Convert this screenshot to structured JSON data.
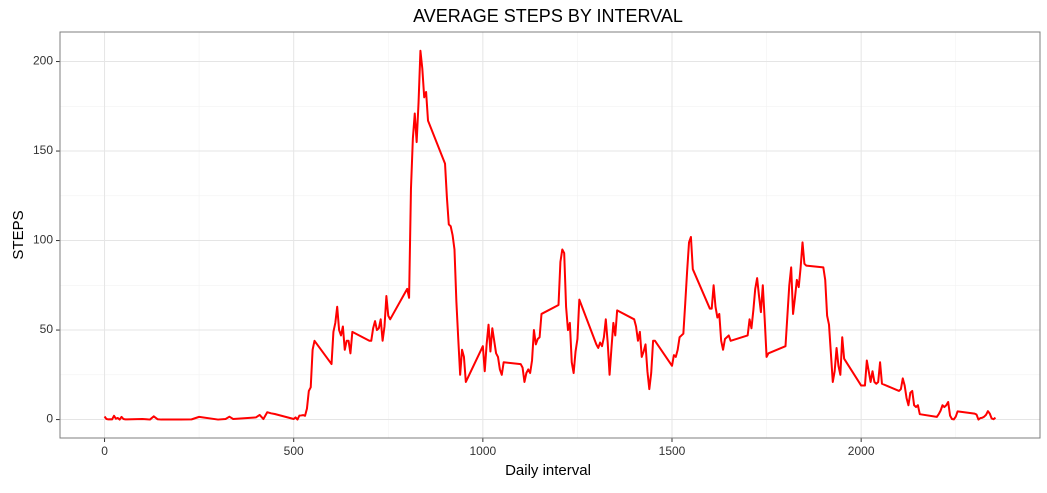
{
  "chart_data": {
    "type": "line",
    "title": "AVERAGE STEPS BY INTERVAL",
    "x_label": "Daily interval",
    "y_label": "STEPS",
    "x": [
      0,
      5,
      10,
      15,
      20,
      25,
      30,
      35,
      40,
      45,
      50,
      55,
      100,
      110,
      120,
      130,
      140,
      150,
      200,
      230,
      250,
      300,
      320,
      330,
      340,
      400,
      410,
      420,
      430,
      440,
      450,
      500,
      505,
      510,
      515,
      520,
      525,
      530,
      535,
      540,
      545,
      550,
      555,
      600,
      605,
      610,
      615,
      620,
      625,
      630,
      635,
      640,
      645,
      650,
      655,
      700,
      705,
      710,
      715,
      720,
      725,
      730,
      735,
      740,
      745,
      750,
      755,
      800,
      805,
      810,
      815,
      820,
      825,
      830,
      835,
      840,
      845,
      850,
      855,
      900,
      905,
      910,
      915,
      920,
      925,
      930,
      935,
      940,
      945,
      950,
      955,
      1000,
      1005,
      1010,
      1015,
      1020,
      1025,
      1030,
      1035,
      1040,
      1045,
      1050,
      1055,
      1100,
      1105,
      1110,
      1115,
      1120,
      1125,
      1130,
      1135,
      1140,
      1145,
      1150,
      1155,
      1200,
      1205,
      1210,
      1215,
      1220,
      1225,
      1230,
      1235,
      1240,
      1245,
      1250,
      1255,
      1300,
      1305,
      1310,
      1315,
      1320,
      1325,
      1330,
      1335,
      1340,
      1345,
      1350,
      1355,
      1400,
      1405,
      1410,
      1415,
      1420,
      1425,
      1430,
      1435,
      1440,
      1445,
      1450,
      1455,
      1500,
      1505,
      1510,
      1515,
      1520,
      1525,
      1530,
      1535,
      1540,
      1545,
      1550,
      1555,
      1600,
      1605,
      1610,
      1615,
      1620,
      1625,
      1630,
      1635,
      1640,
      1645,
      1650,
      1655,
      1700,
      1705,
      1710,
      1715,
      1720,
      1725,
      1730,
      1735,
      1740,
      1745,
      1750,
      1755,
      1800,
      1805,
      1810,
      1815,
      1820,
      1825,
      1830,
      1835,
      1840,
      1845,
      1850,
      1855,
      1900,
      1905,
      1910,
      1915,
      1920,
      1925,
      1930,
      1935,
      1940,
      1945,
      1950,
      1955,
      2000,
      2005,
      2010,
      2015,
      2020,
      2025,
      2030,
      2035,
      2040,
      2045,
      2050,
      2055,
      2100,
      2105,
      2110,
      2115,
      2120,
      2125,
      2130,
      2135,
      2140,
      2145,
      2150,
      2155,
      2200,
      2205,
      2210,
      2215,
      2220,
      2225,
      2230,
      2235,
      2240,
      2245,
      2250,
      2255,
      2300,
      2305,
      2310,
      2315,
      2320,
      2325,
      2330,
      2335,
      2340,
      2345,
      2350,
      2355
    ],
    "series": [
      {
        "name": "steps",
        "color": "#ff0000",
        "values": [
          1.7,
          0.3,
          0.1,
          0.2,
          0.1,
          2.1,
          0.5,
          0.9,
          0,
          1.5,
          0.3,
          0.1,
          0.3,
          0.2,
          0,
          1.8,
          0.2,
          0,
          0,
          0.1,
          1.5,
          0,
          0.3,
          1.6,
          0.3,
          1.2,
          2.6,
          0.3,
          4.1,
          3.5,
          3.1,
          0.3,
          1.2,
          0,
          2.2,
          2.3,
          2.5,
          2.1,
          6.1,
          16,
          18,
          39,
          44,
          31,
          49,
          54,
          63,
          50,
          47,
          52,
          39,
          44,
          44,
          37,
          49,
          44,
          44,
          51,
          55,
          50,
          51,
          56,
          44,
          52,
          69,
          58,
          56,
          73,
          68,
          129,
          157,
          171,
          155,
          177,
          206,
          196,
          180,
          183,
          167,
          143,
          124,
          109,
          108,
          103,
          95,
          66,
          45,
          25,
          39,
          35,
          21,
          41,
          27,
          42,
          53,
          38,
          51,
          44,
          37,
          35,
          28,
          25,
          32,
          31,
          29,
          21,
          26,
          28,
          26,
          33,
          50,
          42,
          45,
          46,
          59,
          64,
          88,
          95,
          93,
          63,
          50,
          54,
          32,
          26,
          38,
          45,
          67,
          42,
          40,
          43,
          41,
          46,
          56,
          43,
          25,
          40,
          54,
          47,
          61,
          56,
          52,
          44,
          49,
          35,
          38,
          42,
          27,
          17,
          26,
          44,
          44,
          30,
          36,
          35,
          39,
          46,
          47,
          48,
          65,
          83,
          99,
          102,
          84,
          62,
          62,
          75,
          63,
          57,
          59,
          44,
          39,
          45,
          46,
          47,
          44,
          47,
          56,
          51,
          61,
          73,
          79,
          69,
          60,
          75,
          56,
          35,
          37,
          41,
          58,
          75,
          85,
          59,
          68,
          78,
          74,
          85,
          99,
          87,
          86,
          85,
          78,
          58,
          53,
          37,
          21,
          27,
          40,
          30,
          25,
          46,
          34,
          19,
          19,
          19,
          33,
          27,
          21,
          27,
          21,
          20,
          21,
          32,
          20,
          16,
          17,
          23,
          19,
          12,
          8,
          15,
          16,
          8,
          7,
          8,
          3,
          1.5,
          3,
          5,
          8,
          7,
          8,
          9.8,
          2.2,
          0.3,
          0.1,
          1.6,
          4.6,
          3.3,
          2.8,
          0,
          0.8,
          1,
          1.6,
          2.6,
          4.7,
          3.3,
          0.6,
          0.2,
          1.1
        ]
      }
    ],
    "xlim": [
      -117.75,
      2472.75
    ],
    "ylim": [
      -10.3,
      216.5
    ],
    "xticks": [
      0,
      500,
      1000,
      1500,
      2000
    ],
    "yticks": [
      0,
      50,
      100,
      150,
      200
    ],
    "xminorticks": [
      250,
      750,
      1250,
      1750,
      2250
    ],
    "yminorticks": [
      25,
      75,
      125,
      175
    ],
    "grid": true
  }
}
